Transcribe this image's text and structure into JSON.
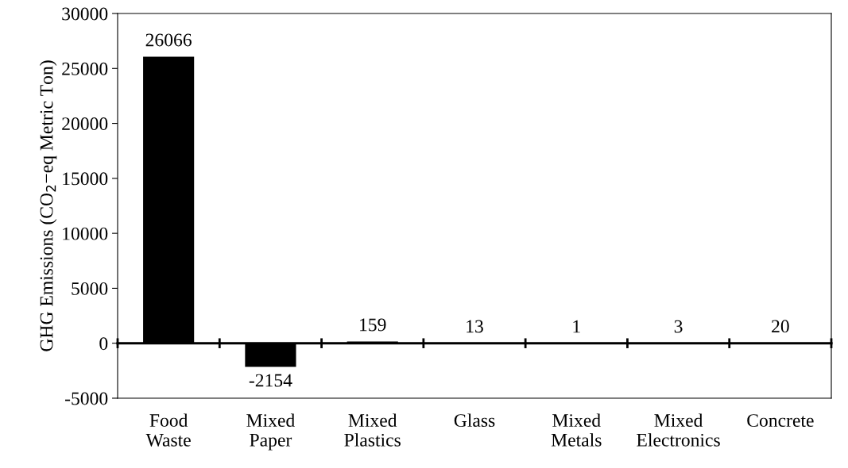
{
  "chart_data": {
    "type": "bar",
    "ylabel": "GHG Emissions (CO$_{2}$−eq Metric Ton)",
    "categories": [
      "Food\nWaste",
      "Mixed\nPaper",
      "Mixed\nPlastics",
      "Glass",
      "Mixed\nMetals",
      "Mixed\nElectronics",
      "Concrete"
    ],
    "values": [
      26066,
      -2154,
      159,
      13,
      1,
      3,
      20
    ],
    "color": "#000000",
    "ylim": [
      -5000,
      30000
    ],
    "yticks": [
      -5000,
      0,
      5000,
      10000,
      15000,
      20000,
      25000,
      30000
    ],
    "data_labels": true
  }
}
